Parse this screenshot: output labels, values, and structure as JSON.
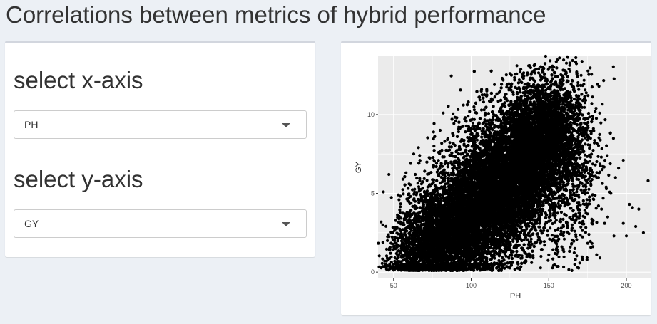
{
  "page": {
    "title": "Correlations between metrics of hybrid performance"
  },
  "controls": {
    "x_axis": {
      "label": "select x-axis",
      "selected": "PH"
    },
    "y_axis": {
      "label": "select y-axis",
      "selected": "GY"
    }
  },
  "colors": {
    "page_background": "#ecf0f5",
    "panel_background": "#ffffff",
    "plot_background": "#ebebeb",
    "grid": "#ffffff",
    "points": "#000000"
  },
  "chart_data": {
    "type": "scatter",
    "title": "",
    "xlabel": "PH",
    "ylabel": "GY",
    "xlim": [
      40,
      217
    ],
    "ylim": [
      -0.4,
      13.7
    ],
    "x_ticks": [
      50,
      100,
      150,
      200
    ],
    "y_ticks": [
      0,
      5,
      10
    ],
    "grid": true,
    "legend": "none",
    "points": [
      [
        47,
        6.2
      ],
      [
        51,
        2.2
      ],
      [
        46,
        2.0
      ],
      [
        48,
        1.2
      ],
      [
        52,
        0.6
      ],
      [
        55,
        1.0
      ],
      [
        53,
        4.9
      ],
      [
        56,
        5.9
      ],
      [
        58,
        6.3
      ],
      [
        60,
        5.6
      ],
      [
        61,
        6.9
      ],
      [
        63,
        7.5
      ],
      [
        64,
        6.2
      ],
      [
        66,
        7.9
      ],
      [
        57,
        3.3
      ],
      [
        59,
        2.1
      ],
      [
        62,
        1.5
      ],
      [
        65,
        0.9
      ],
      [
        67,
        2.4
      ],
      [
        69,
        4.5
      ],
      [
        68,
        5.6
      ],
      [
        70,
        6.4
      ],
      [
        72,
        3.3
      ],
      [
        73,
        0.8
      ],
      [
        75,
        2.7
      ],
      [
        78,
        0.5
      ],
      [
        80,
        9.0
      ],
      [
        82,
        10.1
      ],
      [
        85,
        8.5
      ],
      [
        90,
        9.6
      ],
      [
        95,
        10.6
      ],
      [
        105,
        11.1
      ],
      [
        110,
        11.6
      ],
      [
        115,
        11.9
      ],
      [
        120,
        12.3
      ],
      [
        125,
        12.6
      ],
      [
        131,
        12.2
      ],
      [
        137,
        13.1
      ],
      [
        141,
        13.2
      ],
      [
        145,
        12.4
      ],
      [
        148,
        13.7
      ],
      [
        152,
        12.5
      ],
      [
        157,
        12.0
      ],
      [
        160,
        11.0
      ],
      [
        163,
        11.3
      ],
      [
        168,
        12.7
      ],
      [
        170,
        10.5
      ],
      [
        172,
        9.0
      ],
      [
        175,
        8.6
      ],
      [
        177,
        7.3
      ],
      [
        180,
        6.8
      ],
      [
        182,
        6.0
      ],
      [
        184,
        4.0
      ],
      [
        186,
        3.1
      ],
      [
        183,
        0.9
      ],
      [
        188,
        3.5
      ],
      [
        190,
        5.0
      ],
      [
        193,
        6.0
      ],
      [
        195,
        6.6
      ],
      [
        198,
        7.1
      ],
      [
        200,
        2.3
      ],
      [
        202,
        4.3
      ],
      [
        204,
        4.1
      ],
      [
        206,
        2.9
      ],
      [
        208,
        4.0
      ],
      [
        211,
        2.5
      ],
      [
        214,
        5.8
      ],
      [
        198,
        3.1
      ],
      [
        192,
        2.3
      ],
      [
        187,
        5.4
      ],
      [
        173,
        4.3
      ],
      [
        178,
        4.9
      ],
      [
        165,
        3.0
      ],
      [
        160,
        2.1
      ],
      [
        155,
        1.5
      ],
      [
        150,
        1.1
      ],
      [
        145,
        1.0
      ],
      [
        140,
        0.9
      ],
      [
        135,
        1.2
      ],
      [
        130,
        0.6
      ],
      [
        125,
        0.6
      ],
      [
        120,
        0.7
      ],
      [
        115,
        0.5
      ],
      [
        110,
        0.8
      ],
      [
        105,
        0.9
      ],
      [
        100,
        1.0
      ],
      [
        95,
        0.5
      ],
      [
        90,
        0.6
      ],
      [
        85,
        0.7
      ],
      [
        80,
        0.4
      ],
      [
        76,
        7.1
      ],
      [
        79,
        7.6
      ],
      [
        83,
        8.3
      ],
      [
        88,
        8.8
      ],
      [
        92,
        9.2
      ],
      [
        98,
        9.9
      ],
      [
        102,
        10.3
      ],
      [
        108,
        10.8
      ],
      [
        113,
        11.0
      ],
      [
        118,
        11.4
      ]
    ],
    "density": [
      {
        "cx": 118,
        "cy": 5.4,
        "sx": 20,
        "sy": 2.4,
        "n": 9000
      },
      {
        "cx": 135,
        "cy": 7.2,
        "sx": 14,
        "sy": 2.2,
        "n": 4500
      },
      {
        "cx": 98,
        "cy": 3.4,
        "sx": 15,
        "sy": 1.8,
        "n": 4500
      },
      {
        "cx": 78,
        "cy": 2.2,
        "sx": 9,
        "sy": 1.4,
        "n": 1600
      },
      {
        "cx": 150,
        "cy": 9.0,
        "sx": 11,
        "sy": 1.7,
        "n": 1500
      },
      {
        "cx": 60,
        "cy": 1.6,
        "sx": 8,
        "sy": 1.5,
        "n": 500
      },
      {
        "cx": 165,
        "cy": 5.8,
        "sx": 10,
        "sy": 2.5,
        "n": 600
      }
    ]
  }
}
